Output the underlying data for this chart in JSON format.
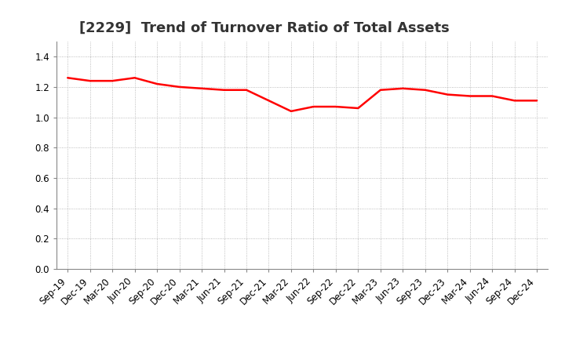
{
  "title": "[2229]  Trend of Turnover Ratio of Total Assets",
  "x_labels": [
    "Sep-19",
    "Dec-19",
    "Mar-20",
    "Jun-20",
    "Sep-20",
    "Dec-20",
    "Mar-21",
    "Jun-21",
    "Sep-21",
    "Dec-21",
    "Mar-22",
    "Jun-22",
    "Sep-22",
    "Dec-22",
    "Mar-23",
    "Jun-23",
    "Sep-23",
    "Dec-23",
    "Mar-24",
    "Jun-24",
    "Sep-24",
    "Dec-24"
  ],
  "y_values": [
    1.26,
    1.24,
    1.24,
    1.26,
    1.22,
    1.2,
    1.19,
    1.18,
    1.18,
    1.11,
    1.04,
    1.07,
    1.07,
    1.06,
    1.18,
    1.19,
    1.18,
    1.15,
    1.14,
    1.14,
    1.11,
    1.11
  ],
  "line_color": "#ff0000",
  "line_width": 1.8,
  "ylim": [
    0.0,
    1.5
  ],
  "yticks": [
    0.0,
    0.2,
    0.4,
    0.6,
    0.8,
    1.0,
    1.2,
    1.4
  ],
  "background_color": "#ffffff",
  "grid_color": "#aaaaaa",
  "title_fontsize": 13,
  "tick_fontsize": 8.5
}
